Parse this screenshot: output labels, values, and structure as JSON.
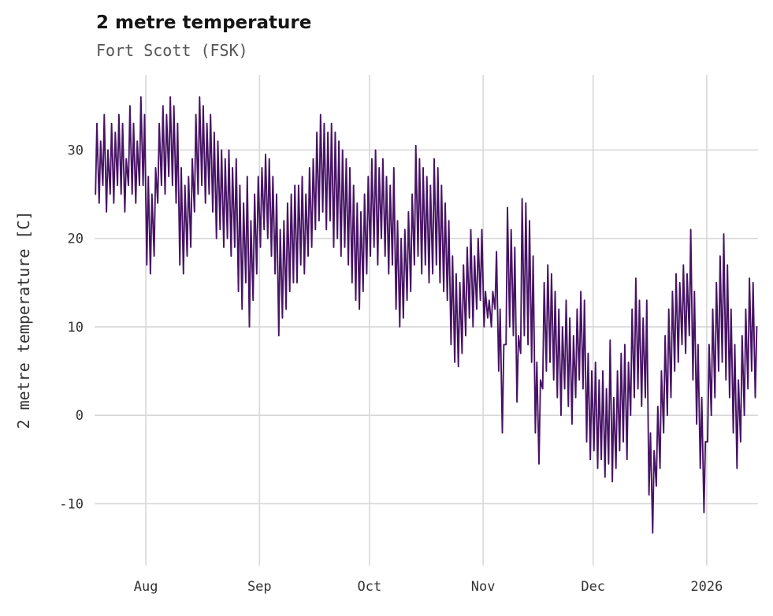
{
  "chart_data": {
    "type": "line",
    "title": "2 metre temperature",
    "subtitle": "Fort Scott (FSK)",
    "ylabel": "2 metre temperature [C]",
    "xlabel": "",
    "line_color": "#471365",
    "grid": true,
    "ylim": [
      -17,
      38.5
    ],
    "yticks": [
      -10,
      0,
      10,
      20,
      30
    ],
    "x_total_days": 181,
    "x_tick_days": [
      14,
      45,
      75,
      106,
      136,
      167
    ],
    "x_tick_labels": [
      "Aug",
      "Sep",
      "Oct",
      "Nov",
      "Dec",
      "2026"
    ],
    "x_start_note": "day 0 = mid/late July, series runs through mid January 2026",
    "daily_min": [
      25,
      24,
      26,
      23,
      25,
      24,
      26,
      25,
      23,
      26,
      25,
      24,
      26,
      26,
      17,
      16,
      18,
      24,
      26,
      25,
      27,
      26,
      24,
      17,
      16,
      18,
      19,
      23,
      25,
      26,
      24,
      25,
      23,
      20,
      21,
      19,
      20,
      18,
      19,
      14,
      12,
      15,
      10,
      13,
      16,
      19,
      21,
      20,
      18,
      16,
      9,
      11,
      12,
      14,
      15,
      15,
      17,
      16,
      18,
      19,
      21,
      22,
      23,
      21,
      22,
      19,
      20,
      18,
      19,
      17,
      15,
      13,
      12,
      14,
      16,
      18,
      19,
      17,
      20,
      18,
      16,
      17,
      12,
      10,
      11,
      13,
      14,
      17,
      18,
      16,
      17,
      15,
      16,
      17,
      15,
      14,
      13,
      8,
      6,
      5.5,
      7,
      9,
      11,
      10,
      12,
      13,
      10,
      11,
      10,
      12,
      5,
      -2,
      8,
      10,
      9,
      1.5,
      7,
      9,
      8,
      6,
      -2,
      -5.5,
      3,
      5,
      6,
      4,
      2,
      0,
      3,
      1,
      -1,
      2,
      4,
      3,
      -3,
      -5,
      -4,
      -6,
      -5,
      -7,
      -5.5,
      -7.5,
      -6,
      -4,
      -3,
      -5,
      0,
      2,
      3,
      1,
      2,
      -9,
      -13.3,
      -8,
      -6,
      -2,
      0,
      2,
      5,
      6,
      8,
      7,
      9,
      4,
      -1,
      -6,
      -11,
      -3,
      0,
      2,
      5,
      6,
      4,
      2,
      -2,
      -6,
      -3,
      0,
      3,
      5,
      2
    ],
    "daily_max": [
      33,
      31,
      34,
      30,
      33,
      32,
      34,
      33,
      29,
      35,
      33,
      31,
      36,
      34,
      27,
      25,
      28,
      33,
      35,
      34,
      36,
      35,
      33,
      28,
      26,
      27,
      29,
      34,
      36,
      35,
      33,
      34,
      32,
      31,
      30,
      29,
      30,
      28,
      29,
      26,
      24,
      27,
      22,
      25,
      27,
      28,
      29.5,
      29,
      27,
      25,
      21,
      22,
      24,
      25,
      26,
      26,
      27,
      25,
      28,
      29,
      32,
      34,
      33,
      32,
      33,
      32,
      31,
      30,
      29,
      28,
      26,
      24,
      23,
      25,
      27,
      29,
      30,
      28,
      29,
      27,
      26,
      28,
      22,
      20,
      21,
      23,
      25,
      30.5,
      29,
      28,
      27,
      26,
      29,
      28,
      26,
      24,
      22,
      18,
      16,
      15,
      17,
      19,
      21,
      18,
      20,
      21,
      14,
      13,
      14,
      18.5,
      12,
      8,
      23.5,
      21,
      19,
      9,
      24.5,
      24,
      22,
      18,
      6,
      4,
      15,
      17,
      16,
      14,
      12,
      10,
      13,
      11,
      9,
      12,
      14,
      13,
      7,
      5,
      6,
      4,
      5,
      3,
      8.5,
      2,
      5,
      7,
      8,
      6,
      12,
      15.5,
      13,
      11,
      13,
      -2,
      -4,
      1,
      5,
      9,
      12,
      14,
      16,
      15,
      17,
      16,
      21,
      14,
      8,
      2,
      -3,
      8,
      12,
      15,
      18,
      20.5,
      17,
      12,
      8,
      4,
      9,
      12,
      15.5,
      15,
      10
    ]
  }
}
